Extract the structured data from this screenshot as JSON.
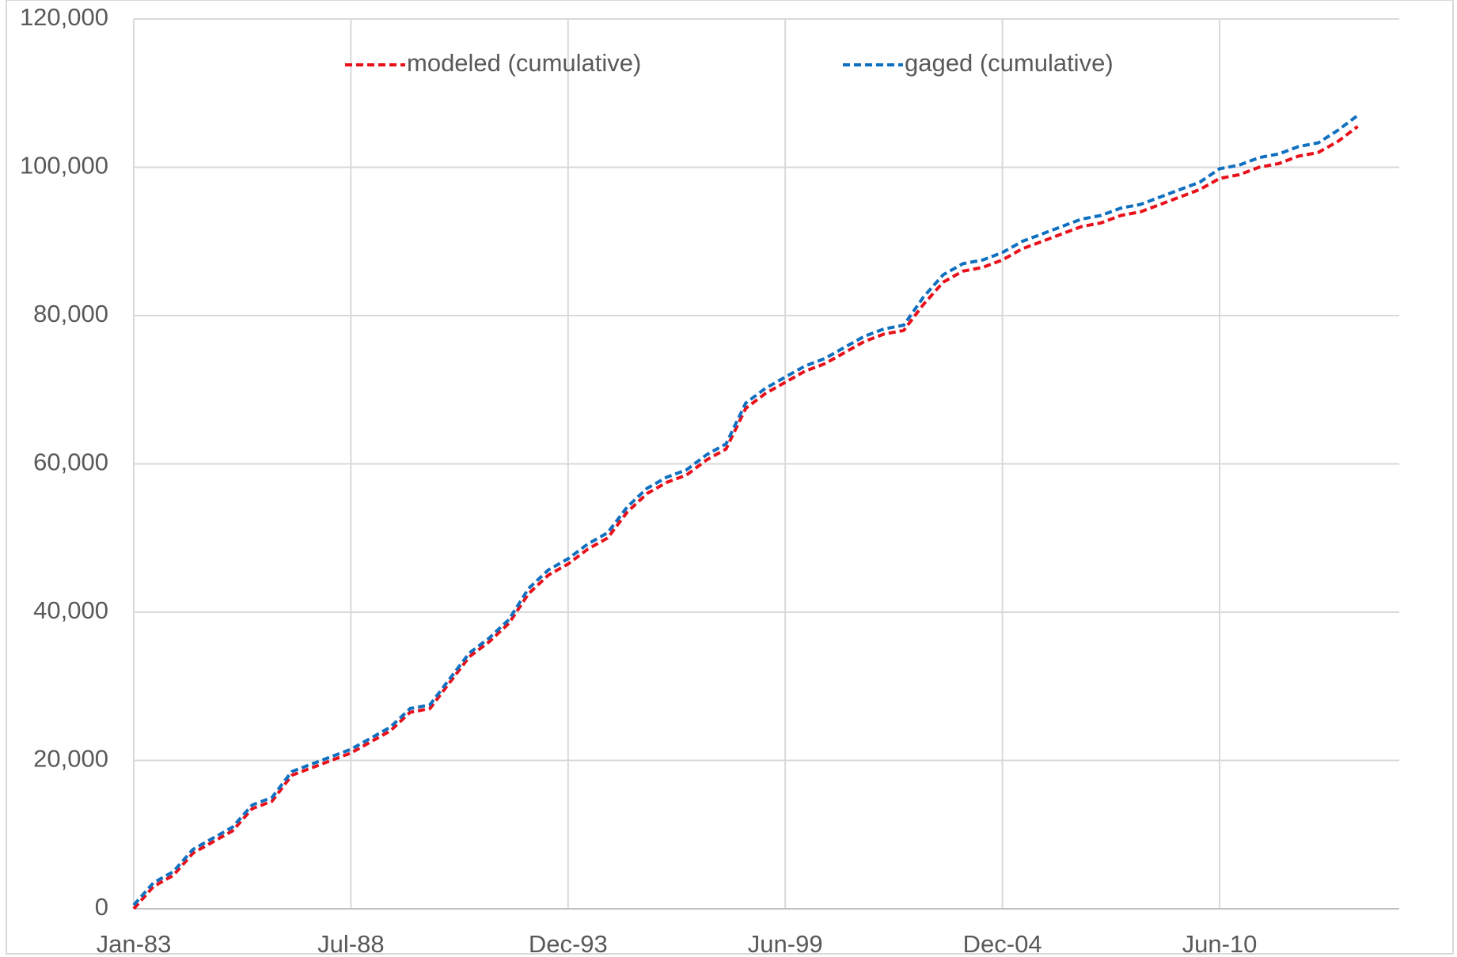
{
  "chart_data": {
    "type": "line",
    "categories": [
      "Jan-83",
      null,
      null,
      null,
      null,
      null,
      null,
      null,
      null,
      null,
      null,
      "Jul-88",
      null,
      null,
      null,
      null,
      null,
      null,
      null,
      null,
      null,
      null,
      "Dec-93",
      null,
      null,
      null,
      null,
      null,
      null,
      null,
      null,
      null,
      null,
      "Jun-99",
      null,
      null,
      null,
      null,
      null,
      null,
      null,
      null,
      null,
      null,
      "Dec-04",
      null,
      null,
      null,
      null,
      null,
      null,
      null,
      null,
      null,
      null,
      "Jun-10",
      null,
      null,
      null,
      null,
      null,
      null,
      null
    ],
    "series": [
      {
        "name": "modeled (cumulative)",
        "color": "#e8101a",
        "dash": true,
        "values": [
          0,
          3000,
          4500,
          7500,
          9000,
          10500,
          13500,
          14500,
          18000,
          19000,
          20000,
          21000,
          22500,
          24000,
          26500,
          27000,
          30500,
          34000,
          36000,
          38500,
          42500,
          45000,
          46500,
          48500,
          50000,
          53500,
          56000,
          57500,
          58500,
          60500,
          62000,
          67500,
          69500,
          71000,
          72500,
          73500,
          75000,
          76500,
          77500,
          78000,
          81500,
          84500,
          86000,
          86500,
          87500,
          89000,
          90000,
          91000,
          92000,
          92500,
          93500,
          94000,
          95000,
          96000,
          97000,
          98500,
          99000,
          100000,
          100500,
          101500,
          102000,
          103500,
          105500
        ]
      },
      {
        "name": "gaged (cumulative)",
        "color": "#1070c0",
        "dash": true,
        "values": [
          500,
          3500,
          5000,
          8000,
          9500,
          11000,
          14000,
          15000,
          18500,
          19500,
          20500,
          21500,
          23000,
          24500,
          27000,
          27500,
          31000,
          34500,
          36500,
          39000,
          43200,
          45700,
          47200,
          49200,
          50700,
          54200,
          56700,
          58200,
          59200,
          61200,
          62700,
          68200,
          70200,
          71700,
          73200,
          74200,
          75700,
          77200,
          78200,
          78700,
          82500,
          85500,
          87000,
          87500,
          88500,
          90000,
          91000,
          92000,
          93000,
          93500,
          94500,
          95000,
          96000,
          97000,
          98000,
          99800,
          100300,
          101300,
          101800,
          102800,
          103300,
          105000,
          107000
        ]
      }
    ],
    "ylim": [
      0,
      120000
    ],
    "yticks": [
      0,
      {
        "value": 20000,
        "label": "20,000"
      },
      {
        "value": 40000,
        "label": "40,000"
      },
      {
        "value": 60000,
        "label": "60,000"
      },
      {
        "value": 80000,
        "label": "80,000"
      },
      {
        "value": 100000,
        "label": "100,000"
      },
      {
        "value": 120000,
        "label": "120,000"
      }
    ],
    "grid": true,
    "legend": "top"
  }
}
